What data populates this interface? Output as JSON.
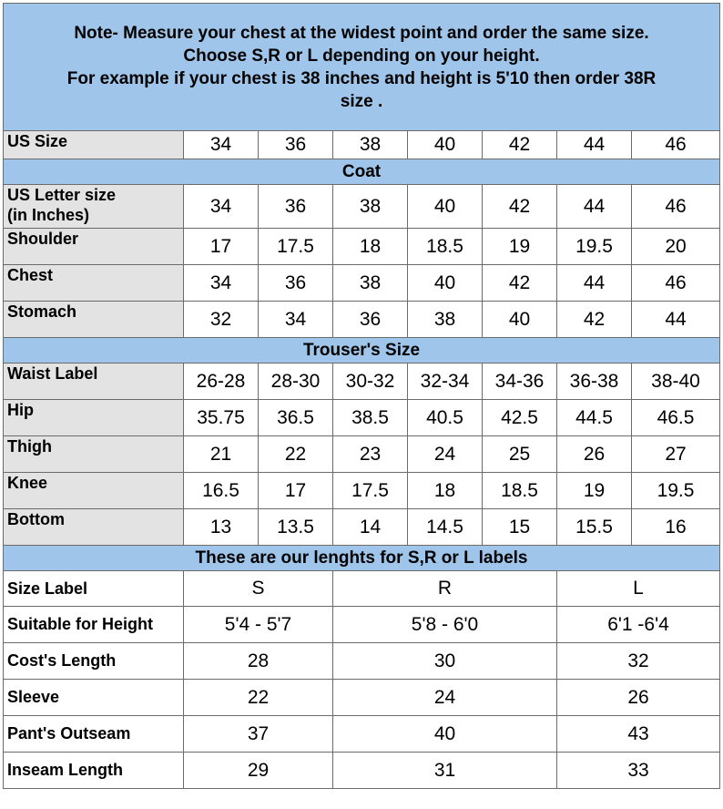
{
  "note": {
    "line1": "Note- Measure your chest at the widest point and order the same size.",
    "line2": "Choose S,R or L depending on your height.",
    "line3": "For example if your chest is 38 inches and height is 5'10 then order 38R",
    "line4": "size ."
  },
  "us_size": {
    "label": "US Size",
    "values": [
      "34",
      "36",
      "38",
      "40",
      "42",
      "44",
      "46"
    ]
  },
  "coat": {
    "title": "Coat",
    "rows": [
      {
        "label_line1": "US Letter size",
        "label_line2": "(in Inches)",
        "values": [
          "34",
          "36",
          "38",
          "40",
          "42",
          "44",
          "46"
        ]
      },
      {
        "label_line1": "Shoulder",
        "label_line2": "",
        "values": [
          "17",
          "17.5",
          "18",
          "18.5",
          "19",
          "19.5",
          "20"
        ]
      },
      {
        "label_line1": "Chest",
        "label_line2": "",
        "values": [
          "34",
          "36",
          "38",
          "40",
          "42",
          "44",
          "46"
        ]
      },
      {
        "label_line1": "Stomach",
        "label_line2": "",
        "values": [
          "32",
          "34",
          "36",
          "38",
          "40",
          "42",
          "44"
        ]
      }
    ]
  },
  "trousers": {
    "title": "Trouser's Size",
    "rows": [
      {
        "label": "Waist Label",
        "values": [
          "26-28",
          "28-30",
          "30-32",
          "32-34",
          "34-36",
          "36-38",
          "38-40"
        ]
      },
      {
        "label": "Hip",
        "values": [
          "35.75",
          "36.5",
          "38.5",
          "40.5",
          "42.5",
          "44.5",
          "46.5"
        ]
      },
      {
        "label": "Thigh",
        "values": [
          "21",
          "22",
          "23",
          "24",
          "25",
          "26",
          "27"
        ]
      },
      {
        "label": "Knee",
        "values": [
          "16.5",
          "17",
          "17.5",
          "18",
          "18.5",
          "19",
          "19.5"
        ]
      },
      {
        "label": "Bottom",
        "values": [
          "13",
          "13.5",
          "14",
          "14.5",
          "15",
          "15.5",
          "16"
        ]
      }
    ]
  },
  "lengths": {
    "title": "These are our lenghts for S,R or L labels",
    "rows": [
      {
        "label": "Size Label",
        "values": [
          "S",
          "R",
          "L"
        ]
      },
      {
        "label": "Suitable for Height",
        "values": [
          "5'4 - 5'7",
          "5'8 - 6'0",
          "6'1 -6'4"
        ]
      },
      {
        "label": "Cost's Length",
        "values": [
          "28",
          "30",
          "32"
        ]
      },
      {
        "label": "Sleeve",
        "values": [
          "22",
          "24",
          "26"
        ]
      },
      {
        "label": "Pant's Outseam",
        "values": [
          "37",
          "40",
          "43"
        ]
      },
      {
        "label": "Inseam Length",
        "values": [
          "29",
          "31",
          "33"
        ]
      }
    ]
  }
}
